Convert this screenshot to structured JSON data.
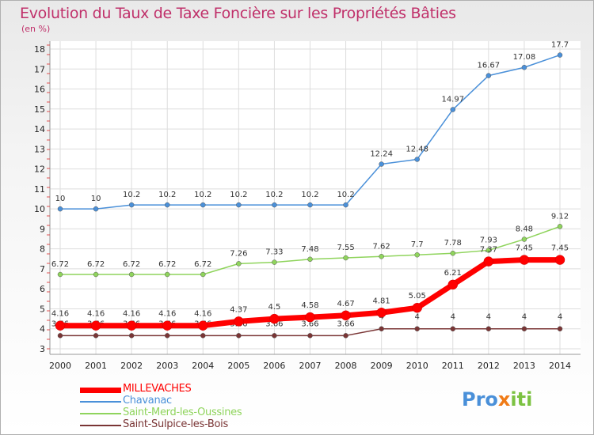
{
  "title": "Evolution du Taux de Taxe Foncière sur les Propriétés Bâties",
  "unit": "(en %)",
  "logo": {
    "parts": [
      "Pro",
      "x",
      "iti"
    ],
    "colors": [
      "#4a90d9",
      "#f07b16",
      "#7cc242"
    ]
  },
  "chart_data": {
    "type": "line",
    "title": "Evolution du Taux de Taxe Foncière sur les Propriétés Bâties",
    "ylabel": "(en %)",
    "xlabel": "",
    "ylim": [
      3,
      18
    ],
    "yticks": [
      3,
      4,
      5,
      6,
      7,
      8,
      9,
      10,
      11,
      12,
      13,
      14,
      15,
      16,
      17,
      18
    ],
    "x": [
      "2000",
      "2001",
      "2002",
      "2003",
      "2004",
      "2005",
      "2006",
      "2007",
      "2008",
      "2009",
      "2010",
      "2011",
      "2012",
      "2013",
      "2014"
    ],
    "grid": true,
    "legend": "bottom-left",
    "series": [
      {
        "name": "MILLEVACHES",
        "color": "#ff0000",
        "values": [
          4.16,
          4.16,
          4.16,
          4.16,
          4.16,
          4.37,
          4.5,
          4.58,
          4.67,
          4.81,
          5.05,
          6.21,
          7.37,
          7.45,
          7.45
        ],
        "labels": [
          "4.16",
          "4.16",
          "4.16",
          "4.16",
          "4.16",
          "4.37",
          "4.5",
          "4.58",
          "4.67",
          "4.81",
          "5.05",
          "6.21",
          "7.37",
          "7.45",
          "7.45"
        ]
      },
      {
        "name": "Chavanac",
        "color": "#4a90d9",
        "values": [
          10,
          10,
          10.2,
          10.2,
          10.2,
          10.2,
          10.2,
          10.2,
          10.2,
          12.24,
          12.48,
          14.97,
          16.67,
          17.08,
          17.7
        ],
        "labels": [
          "10",
          "10",
          "10.2",
          "10.2",
          "10.2",
          "10.2",
          "10.2",
          "10.2",
          "10.2",
          "12.24",
          "12.48",
          "14.97",
          "16.67",
          "17.08",
          "17.7"
        ]
      },
      {
        "name": "Saint-Merd-les-Oussines",
        "color": "#8fd45c",
        "values": [
          6.72,
          6.72,
          6.72,
          6.72,
          6.72,
          7.26,
          7.33,
          7.48,
          7.55,
          7.62,
          7.7,
          7.78,
          7.93,
          8.48,
          9.12
        ],
        "labels": [
          "6.72",
          "6.72",
          "6.72",
          "6.72",
          "6.72",
          "7.26",
          "7.33",
          "7.48",
          "7.55",
          "7.62",
          "7.7",
          "7.78",
          "7.93",
          "8.48",
          "9.12"
        ]
      },
      {
        "name": "Saint-Sulpice-les-Bois",
        "color": "#7a3535",
        "values": [
          3.66,
          3.66,
          3.66,
          3.66,
          3.66,
          3.66,
          3.66,
          3.66,
          3.66,
          4,
          4,
          4,
          4,
          4,
          4
        ],
        "labels": [
          "3.66",
          "3.66",
          "3.66",
          "3.66",
          "3.66",
          "3.66",
          "3.66",
          "3.66",
          "3.66",
          "4",
          "4",
          "4",
          "4",
          "4",
          "4"
        ]
      }
    ]
  }
}
